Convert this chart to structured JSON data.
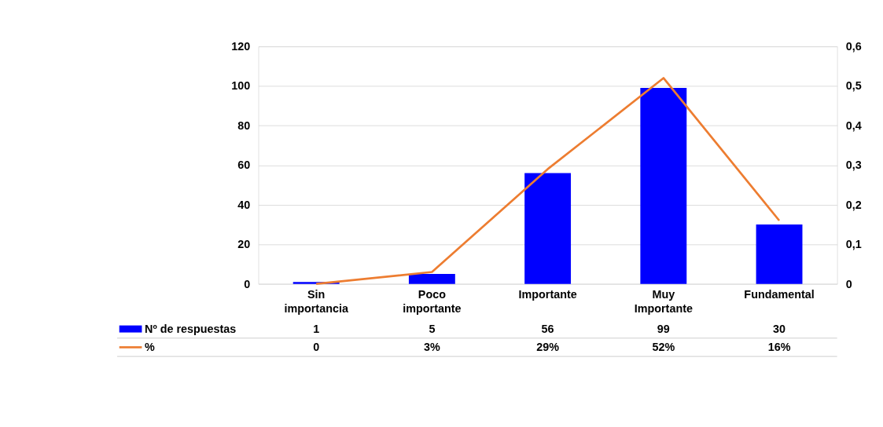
{
  "chart_data": {
    "type": "bar",
    "categories": [
      "Sin importancia",
      "Poco importante",
      "Importante",
      "Muy Importante",
      "Fundamental"
    ],
    "series": [
      {
        "name": "Nº de respuestas",
        "color": "#0000ff",
        "values": [
          1,
          5,
          56,
          99,
          30
        ],
        "value_labels": [
          "1",
          "5",
          "56",
          "99",
          "30"
        ]
      },
      {
        "name": "%",
        "type": "line",
        "axis": "y2",
        "color": "#ed7d31",
        "values": [
          0,
          0.03,
          0.29,
          0.52,
          0.16
        ],
        "value_labels": [
          "0",
          "3%",
          "29%",
          "52%",
          "16%"
        ]
      }
    ],
    "ylim": [
      0,
      120
    ],
    "yticks": [
      0,
      20,
      40,
      60,
      80,
      100,
      120
    ],
    "y2lim": [
      0,
      0.6
    ],
    "y2ticks": [
      0,
      {
        "value": 0.1,
        "label": "0,1"
      },
      {
        "value": 0.2,
        "label": "0,2"
      },
      {
        "value": 0.3,
        "label": "0,3"
      },
      {
        "value": 0.4,
        "label": "0,4"
      },
      {
        "value": 0.5,
        "label": "0,5"
      },
      {
        "value": 0.6,
        "label": "0,6"
      }
    ],
    "grid": "y",
    "legend": "bottom left",
    "marker": "none",
    "line_style": "solid"
  }
}
